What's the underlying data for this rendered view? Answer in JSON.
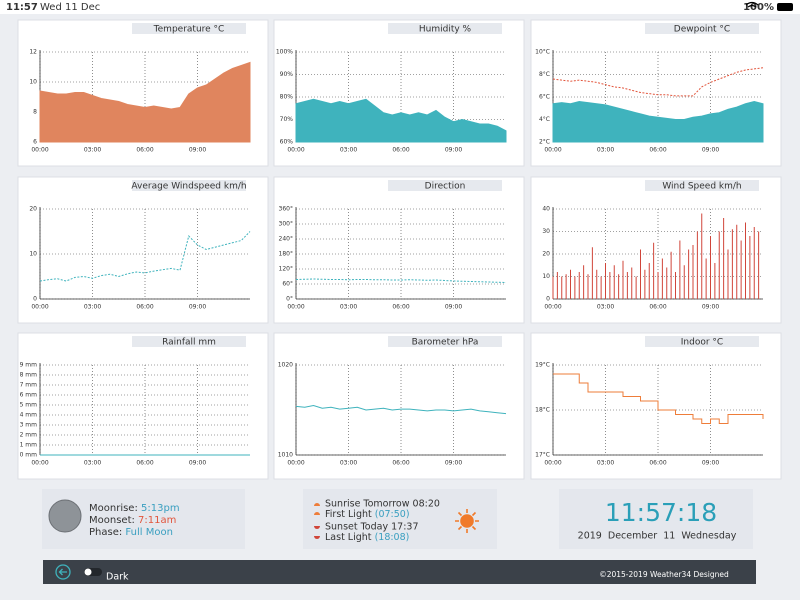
{
  "status_bar": {
    "time": "11:57",
    "date": "Wed 11 Dec",
    "battery": "100%"
  },
  "charts": [
    {
      "type": "area",
      "title": "Temperature °C",
      "xlim": [
        0,
        12
      ],
      "xticks": [
        {
          "value": 0,
          "label": "00:00"
        },
        {
          "value": 3,
          "label": "03:00"
        },
        {
          "value": 6,
          "label": "06:00"
        },
        {
          "value": 9,
          "label": "09:00"
        }
      ],
      "ylim": [
        6,
        12
      ],
      "yticks": [
        6,
        8,
        10,
        12
      ],
      "grid": true,
      "x": [
        0,
        0.5,
        1,
        1.5,
        2,
        2.5,
        3,
        3.5,
        4,
        4.5,
        5,
        5.5,
        6,
        6.5,
        7,
        7.5,
        8,
        8.5,
        9,
        9.5,
        10,
        10.5,
        11,
        11.5,
        12
      ],
      "series": [
        {
          "color": "#e0855e",
          "values": [
            9.4,
            9.3,
            9.2,
            9.2,
            9.3,
            9.3,
            9.1,
            8.9,
            8.8,
            8.7,
            8.5,
            8.4,
            8.3,
            8.4,
            8.3,
            8.2,
            8.3,
            9.2,
            9.6,
            9.8,
            10.2,
            10.6,
            10.9,
            11.1,
            11.3
          ]
        }
      ]
    },
    {
      "type": "area",
      "title": "Humidity %",
      "xlim": [
        0,
        12
      ],
      "xticks": [
        {
          "value": 0,
          "label": "00:00"
        },
        {
          "value": 3,
          "label": "03:00"
        },
        {
          "value": 6,
          "label": "06:00"
        },
        {
          "value": 9,
          "label": "09:00"
        }
      ],
      "ylim": [
        60,
        100
      ],
      "yticks": [
        {
          "value": 60,
          "label": "60%"
        },
        {
          "value": 70,
          "label": "70%"
        },
        {
          "value": 80,
          "label": "80%"
        },
        {
          "value": 90,
          "label": "90%"
        },
        {
          "value": 100,
          "label": "100%"
        }
      ],
      "grid": true,
      "x": [
        0,
        0.5,
        1,
        1.5,
        2,
        2.5,
        3,
        3.5,
        4,
        4.5,
        5,
        5.5,
        6,
        6.5,
        7,
        7.5,
        8,
        8.5,
        9,
        9.5,
        10,
        10.5,
        11,
        11.5,
        12
      ],
      "series": [
        {
          "color": "#3fb3bd",
          "values": [
            77,
            78,
            79,
            78,
            77,
            78,
            77,
            78,
            79,
            76,
            73,
            72,
            73,
            72,
            73,
            72,
            74,
            71,
            69,
            70,
            69,
            68,
            68,
            67,
            65
          ]
        }
      ]
    },
    {
      "type": "area",
      "title": "Dewpoint °C",
      "xlim": [
        0,
        12
      ],
      "xticks": [
        {
          "value": 0,
          "label": "00:00"
        },
        {
          "value": 3,
          "label": "03:00"
        },
        {
          "value": 6,
          "label": "06:00"
        },
        {
          "value": 9,
          "label": "09:00"
        }
      ],
      "ylim": [
        2,
        10
      ],
      "yticks": [
        {
          "value": 2,
          "label": "2°C"
        },
        {
          "value": 4,
          "label": "4°C"
        },
        {
          "value": 6,
          "label": "6°C"
        },
        {
          "value": 8,
          "label": "8°C"
        },
        {
          "value": 10,
          "label": "10°C"
        }
      ],
      "grid": true,
      "x": [
        0,
        0.5,
        1,
        1.5,
        2,
        2.5,
        3,
        3.5,
        4,
        4.5,
        5,
        5.5,
        6,
        6.5,
        7,
        7.5,
        8,
        8.5,
        9,
        9.5,
        10,
        10.5,
        11,
        11.5,
        12
      ],
      "series": [
        {
          "color": "#3fb3bd",
          "values": [
            5.4,
            5.5,
            5.4,
            5.6,
            5.5,
            5.4,
            5.3,
            5.1,
            4.9,
            4.7,
            4.5,
            4.3,
            4.2,
            4.1,
            4.0,
            4.0,
            4.2,
            4.3,
            4.5,
            4.6,
            4.9,
            5.1,
            5.4,
            5.6,
            5.4
          ]
        },
        {
          "color": "#e2553c",
          "dashed": true,
          "values": [
            7.6,
            7.5,
            7.4,
            7.5,
            7.4,
            7.3,
            7.1,
            6.9,
            6.8,
            6.6,
            6.4,
            6.3,
            6.2,
            6.2,
            6.1,
            6.1,
            6.1,
            6.9,
            7.3,
            7.6,
            7.9,
            8.2,
            8.4,
            8.5,
            8.6
          ]
        }
      ]
    },
    {
      "type": "line",
      "title": "Average Windspeed km/h",
      "xlim": [
        0,
        12
      ],
      "xticks": [
        {
          "value": 0,
          "label": "00:00"
        },
        {
          "value": 3,
          "label": "03:00"
        },
        {
          "value": 6,
          "label": "06:00"
        },
        {
          "value": 9,
          "label": "09:00"
        }
      ],
      "ylim": [
        0,
        20
      ],
      "yticks": [
        0,
        10,
        20
      ],
      "grid": true,
      "x": [
        0,
        0.5,
        1,
        1.5,
        2,
        2.5,
        3,
        3.5,
        4,
        4.5,
        5,
        5.5,
        6,
        6.5,
        7,
        7.5,
        8,
        8.5,
        9,
        9.5,
        10,
        10.5,
        11,
        11.5,
        12
      ],
      "series": [
        {
          "color": "#3fb3bd",
          "dashed": true,
          "values": [
            4,
            4.3,
            4.5,
            4,
            4.8,
            5,
            4.6,
            5.2,
            5.5,
            5,
            5.6,
            6,
            5.8,
            6.2,
            6.5,
            6.8,
            6.4,
            14,
            12,
            11,
            11.5,
            12,
            12.5,
            13,
            15
          ]
        }
      ]
    },
    {
      "type": "line",
      "title": "Direction",
      "xlim": [
        0,
        12
      ],
      "xticks": [
        {
          "value": 0,
          "label": "00:00"
        },
        {
          "value": 3,
          "label": "03:00"
        },
        {
          "value": 6,
          "label": "06:00"
        },
        {
          "value": 9,
          "label": "09:00"
        }
      ],
      "ylim": [
        0,
        360
      ],
      "yticks": [
        {
          "value": 0,
          "label": "0°"
        },
        {
          "value": 60,
          "label": "60°"
        },
        {
          "value": 120,
          "label": "120°"
        },
        {
          "value": 180,
          "label": "180°"
        },
        {
          "value": 240,
          "label": "240°"
        },
        {
          "value": 300,
          "label": "300°"
        },
        {
          "value": 360,
          "label": "360°"
        }
      ],
      "grid": true,
      "x": [
        0,
        0.5,
        1,
        1.5,
        2,
        2.5,
        3,
        3.5,
        4,
        4.5,
        5,
        5.5,
        6,
        6.5,
        7,
        7.5,
        8,
        8.5,
        9,
        9.5,
        10,
        10.5,
        11,
        11.5,
        12
      ],
      "series": [
        {
          "color": "#3fb3bd",
          "dashed": true,
          "values": [
            78,
            79,
            80,
            79,
            78,
            78,
            77,
            78,
            78,
            77,
            77,
            76,
            76,
            77,
            76,
            75,
            76,
            74,
            72,
            71,
            70,
            69,
            68,
            67,
            66
          ]
        }
      ]
    },
    {
      "type": "bar",
      "title": "Wind Speed km/h",
      "xlim": [
        0,
        12
      ],
      "xticks": [
        {
          "value": 0,
          "label": "00:00"
        },
        {
          "value": 3,
          "label": "03:00"
        },
        {
          "value": 6,
          "label": "06:00"
        },
        {
          "value": 9,
          "label": "09:00"
        }
      ],
      "ylim": [
        0,
        40
      ],
      "yticks": [
        0,
        10,
        20,
        30,
        40
      ],
      "grid": true,
      "x": [
        0,
        0.25,
        0.5,
        0.75,
        1,
        1.25,
        1.5,
        1.75,
        2,
        2.25,
        2.5,
        2.75,
        3,
        3.25,
        3.5,
        3.75,
        4,
        4.25,
        4.5,
        4.75,
        5,
        5.25,
        5.5,
        5.75,
        6,
        6.25,
        6.5,
        6.75,
        7,
        7.25,
        7.5,
        7.75,
        8,
        8.25,
        8.5,
        8.75,
        9,
        9.25,
        9.5,
        9.75,
        10,
        10.25,
        10.5,
        10.75,
        11,
        11.25,
        11.5,
        11.75
      ],
      "series": [
        {
          "color": "#d0453a",
          "values": [
            10,
            12,
            10,
            11,
            13,
            10,
            12,
            15,
            11,
            23,
            13,
            10,
            16,
            12,
            15,
            11,
            17,
            12,
            14,
            10,
            22,
            13,
            16,
            25,
            12,
            18,
            14,
            21,
            12,
            26,
            15,
            22,
            24,
            30,
            38,
            18,
            28,
            16,
            30,
            36,
            22,
            31,
            33,
            26,
            34,
            28,
            32,
            30
          ]
        }
      ]
    },
    {
      "type": "line",
      "title": "Rainfall mm",
      "xlim": [
        0,
        12
      ],
      "xticks": [
        {
          "value": 0,
          "label": "00:00"
        },
        {
          "value": 3,
          "label": "03:00"
        },
        {
          "value": 6,
          "label": "06:00"
        },
        {
          "value": 9,
          "label": "09:00"
        }
      ],
      "ylim": [
        0,
        9
      ],
      "yticks": [
        {
          "value": 0,
          "label": "0 mm"
        },
        {
          "value": 1,
          "label": "1 mm"
        },
        {
          "value": 2,
          "label": "2 mm"
        },
        {
          "value": 3,
          "label": "3 mm"
        },
        {
          "value": 4,
          "label": "4 mm"
        },
        {
          "value": 5,
          "label": "5 mm"
        },
        {
          "value": 6,
          "label": "6 mm"
        },
        {
          "value": 7,
          "label": "7 mm"
        },
        {
          "value": 8,
          "label": "8 mm"
        },
        {
          "value": 9,
          "label": "9 mm"
        }
      ],
      "grid": true,
      "x": [
        0,
        0.5,
        1,
        1.5,
        2,
        2.5,
        3,
        3.5,
        4,
        4.5,
        5,
        5.5,
        6,
        6.5,
        7,
        7.5,
        8,
        8.5,
        9,
        9.5,
        10,
        10.5,
        11,
        11.5,
        12
      ],
      "series": [
        {
          "color": "#3fb3bd",
          "values": [
            0,
            0,
            0,
            0,
            0,
            0,
            0,
            0,
            0,
            0,
            0,
            0,
            0,
            0,
            0,
            0,
            0,
            0,
            0,
            0,
            0,
            0,
            0,
            0,
            0
          ]
        }
      ]
    },
    {
      "type": "line",
      "title": "Barometer hPa",
      "xlim": [
        0,
        12
      ],
      "xticks": [
        {
          "value": 0,
          "label": "00:00"
        },
        {
          "value": 3,
          "label": "03:00"
        },
        {
          "value": 6,
          "label": "06:00"
        },
        {
          "value": 9,
          "label": "09:00"
        }
      ],
      "ylim": [
        1010,
        1020
      ],
      "yticks": [
        1010,
        1020
      ],
      "grid": true,
      "x": [
        0,
        0.5,
        1,
        1.5,
        2,
        2.5,
        3,
        3.5,
        4,
        4.5,
        5,
        5.5,
        6,
        6.5,
        7,
        7.5,
        8,
        8.5,
        9,
        9.5,
        10,
        10.5,
        11,
        11.5,
        12
      ],
      "series": [
        {
          "color": "#3fb3bd",
          "values": [
            1015.4,
            1015.3,
            1015.5,
            1015.2,
            1015.3,
            1015.1,
            1015.2,
            1015.3,
            1015.0,
            1015.1,
            1015.2,
            1015.0,
            1015.1,
            1015.1,
            1015.0,
            1014.9,
            1015.0,
            1015.0,
            1014.9,
            1015.0,
            1015.1,
            1014.9,
            1014.8,
            1014.7,
            1014.6
          ]
        }
      ]
    },
    {
      "type": "line",
      "title": "Indoor °C",
      "xlim": [
        0,
        12
      ],
      "xticks": [
        {
          "value": 0,
          "label": "00:00"
        },
        {
          "value": 3,
          "label": "03:00"
        },
        {
          "value": 6,
          "label": "06:00"
        },
        {
          "value": 9,
          "label": "09:00"
        }
      ],
      "ylim": [
        17,
        19
      ],
      "yticks": [
        {
          "value": 17,
          "label": "17°C"
        },
        {
          "value": 18,
          "label": "18°C"
        },
        {
          "value": 19,
          "label": "19°C"
        }
      ],
      "grid": true,
      "x": [
        0,
        0.5,
        1,
        1.5,
        2,
        2.5,
        3,
        3.5,
        4,
        4.5,
        5,
        5.5,
        6,
        6.5,
        7,
        7.5,
        8,
        8.5,
        9,
        9.5,
        10,
        10.5,
        11,
        11.5,
        12
      ],
      "series": [
        {
          "color": "#ee7d3a",
          "step": true,
          "values": [
            18.8,
            18.8,
            18.8,
            18.6,
            18.4,
            18.4,
            18.4,
            18.4,
            18.3,
            18.3,
            18.2,
            18.2,
            18.0,
            18.0,
            17.9,
            17.9,
            17.8,
            17.7,
            17.8,
            17.7,
            17.9,
            17.9,
            17.9,
            17.9,
            17.8
          ]
        }
      ]
    }
  ],
  "moon": {
    "rise_label": "Moonrise:",
    "rise": "5:13pm",
    "set_label": "Moonset:",
    "set": "7:11am",
    "phase_label": "Phase:",
    "phase": "Full Moon"
  },
  "sun": {
    "sunrise": "Sunrise Tomorrow 08:20",
    "first_light_label": "First Light",
    "first_light": "(07:50)",
    "sunset": "Sunset Today 17:37",
    "last_light_label": "Last Light",
    "last_light": "(18:08)"
  },
  "clock": {
    "time": "11:57:18",
    "date": "2019  December  11  Wednesday"
  },
  "footer": {
    "toggle": "Dark",
    "copyright": "©2015-2019 Weather34 Designed"
  }
}
